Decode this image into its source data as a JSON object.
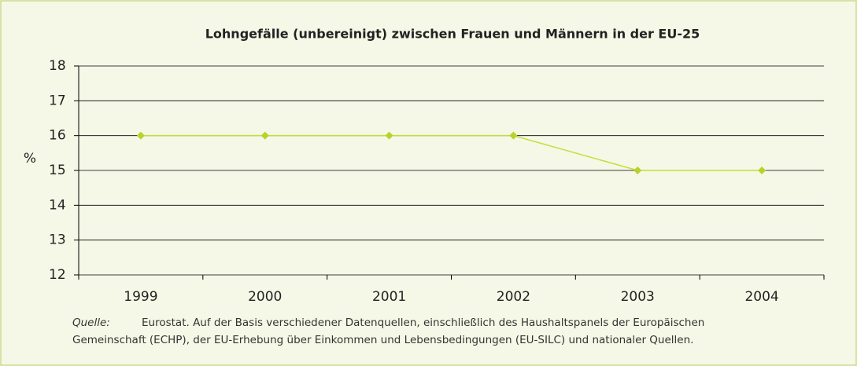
{
  "chart_data": {
    "type": "line",
    "title": "Lohngefälle (unbereinigt) zwischen Frauen und Männern in der EU-25",
    "y_label": "%",
    "categories": [
      "1999",
      "2000",
      "2001",
      "2002",
      "2003",
      "2004"
    ],
    "series": [
      {
        "name": "Lohngefälle",
        "color": "#c8dc3c",
        "values": [
          16,
          16,
          16,
          16,
          15,
          15
        ]
      }
    ],
    "ylim": [
      12,
      18
    ],
    "yticks": [
      12,
      13,
      14,
      15,
      16,
      17,
      18
    ],
    "grid": true,
    "source_label": "Quelle:",
    "source_lines": [
      "Eurostat. Auf der Basis verschiedener Datenquellen, einschließlich des Haushaltspanels der Europäischen",
      "Gemeinschaft (ECHP), der EU-Erhebung über Einkommen und Lebensbedingungen (EU-SILC) und nationaler Quellen."
    ]
  }
}
